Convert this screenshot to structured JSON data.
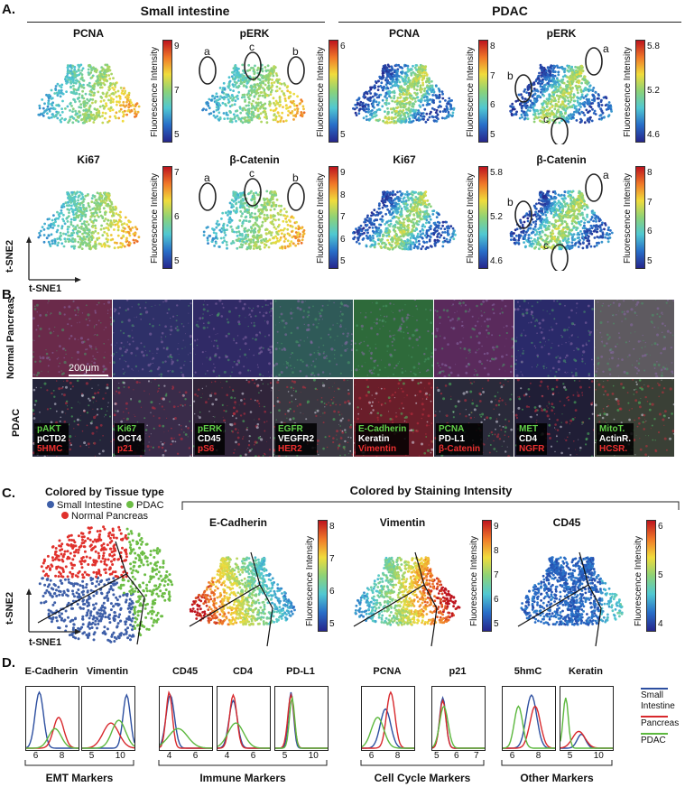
{
  "figure": {
    "panel_labels": {
      "a": "A.",
      "b": "B.",
      "c": "C.",
      "d": "D."
    },
    "panelA": {
      "headers": [
        "Small intestine",
        "PDAC"
      ],
      "axis_labels": {
        "x": "t-SNE1",
        "y": "t-SNE2"
      },
      "colorbar_label": "Fluorescence Intensity",
      "plots": [
        {
          "title": "PCNA",
          "ticks": [
            "9",
            "7",
            "5"
          ],
          "ovals": []
        },
        {
          "title": "pERK",
          "ticks": [
            "6",
            "5"
          ],
          "ovals": [
            "a",
            "c",
            "b"
          ]
        },
        {
          "title": "PCNA",
          "ticks": [
            "8",
            "7",
            "6",
            "5"
          ],
          "ovals": []
        },
        {
          "title": "pERK",
          "ticks": [
            "5.8",
            "5.2",
            "4.6"
          ],
          "ovals": [
            "a",
            "b",
            "c"
          ]
        },
        {
          "title": "Ki67",
          "ticks": [
            "7",
            "6",
            "5"
          ],
          "ovals": []
        },
        {
          "title": "β-Catenin",
          "ticks": [
            "9",
            "8",
            "7",
            "6",
            "5"
          ],
          "ovals": [
            "a",
            "c",
            "b"
          ]
        },
        {
          "title": "Ki67",
          "ticks": [
            "5.8",
            "5.2",
            "4.6"
          ],
          "ovals": []
        },
        {
          "title": "β-Catenin",
          "ticks": [
            "8",
            "7",
            "6",
            "5"
          ],
          "ovals": [
            "a",
            "b",
            "c"
          ]
        }
      ]
    },
    "panelB": {
      "row_labels": [
        "Normal Pancreas",
        "PDAC"
      ],
      "scalebar": "200μm",
      "tiles": [
        {
          "g": "pAKT",
          "w": "pCTD2",
          "r": "5HMC"
        },
        {
          "g": "Ki67",
          "w": "OCT4",
          "r": "p21"
        },
        {
          "g": "pERK",
          "w": "CD45",
          "r": "pS6"
        },
        {
          "g": "EGFR",
          "w": "VEGFR2",
          "r": "HER2"
        },
        {
          "g": "E-Cadherin",
          "w": "Keratin",
          "r": "Vimentin"
        },
        {
          "g": "PCNA",
          "w": "PD-L1",
          "r": "β-Catenin"
        },
        {
          "g": "MET",
          "w": "CD4",
          "r": "NGFR"
        },
        {
          "g": "MitoT.",
          "w": "ActinR.",
          "r": "HCSR."
        }
      ]
    },
    "panelC": {
      "left_title": "Colored by Tissue type",
      "legend": [
        {
          "name": "Small Intestine",
          "color": "#3e5fa8"
        },
        {
          "name": "PDAC",
          "color": "#6cbd45"
        },
        {
          "name": "Normal Pancreas",
          "color": "#e0312c"
        }
      ],
      "right_title": "Colored by Staining Intensity",
      "plots": [
        {
          "title": "E-Cadherin",
          "ticks": [
            "8",
            "7",
            "6",
            "5"
          ]
        },
        {
          "title": "Vimentin",
          "ticks": [
            "9",
            "8",
            "7",
            "6",
            "5"
          ]
        },
        {
          "title": "CD45",
          "ticks": [
            "6",
            "5",
            "4"
          ]
        }
      ]
    },
    "panelD": {
      "legend": [
        {
          "name": "Small Intestine",
          "color": "#2d4fa0"
        },
        {
          "name": "Pancreas",
          "color": "#d8282c"
        },
        {
          "name": "PDAC",
          "color": "#5cb83e"
        }
      ],
      "hists": [
        {
          "title": "E-Cadherin",
          "ticks": [
            "6",
            "8"
          ]
        },
        {
          "title": "Vimentin",
          "ticks": [
            "5",
            "10"
          ]
        },
        {
          "title": "CD45",
          "ticks": [
            "4",
            "6"
          ]
        },
        {
          "title": "CD4",
          "ticks": [
            "4",
            "6"
          ]
        },
        {
          "title": "PD-L1",
          "ticks": [
            "5",
            "10"
          ]
        },
        {
          "title": "PCNA",
          "ticks": [
            "6",
            "8"
          ]
        },
        {
          "title": "p21",
          "ticks": [
            "5",
            "6",
            "7"
          ]
        },
        {
          "title": "5hmC",
          "ticks": [
            "6",
            "8"
          ]
        },
        {
          "title": "Keratin",
          "ticks": [
            "5",
            "10"
          ]
        }
      ],
      "groups": [
        "EMT Markers",
        "Immune Markers",
        "Cell Cycle Markers",
        "Other Markers"
      ]
    }
  }
}
